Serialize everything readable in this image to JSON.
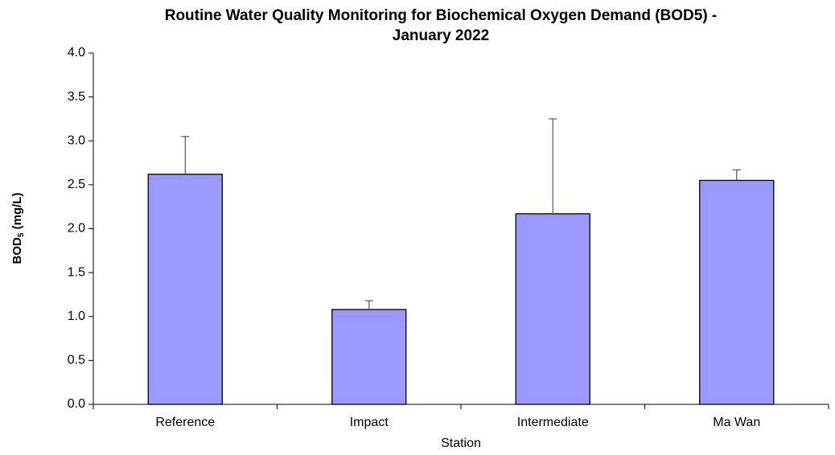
{
  "chart_data": {
    "type": "bar",
    "title": [
      "Routine Water Quality Monitoring for Biochemical Oxygen Demand (BOD5) -",
      "January 2022"
    ],
    "x_label": "Station",
    "y_label": [
      "BOD",
      "5",
      " (mg/L)"
    ],
    "categories": [
      "Reference",
      "Impact",
      "Intermediate",
      "Ma Wan"
    ],
    "values": [
      2.62,
      1.08,
      2.17,
      2.55
    ],
    "errors": [
      0.43,
      0.1,
      1.08,
      0.12
    ],
    "color": "#9999ff",
    "ylim": [
      0,
      4
    ],
    "yticks": [
      {
        "value": 0,
        "label": "0.0"
      },
      {
        "value": 0.5,
        "label": "0.5"
      },
      {
        "value": 1,
        "label": "1.0"
      },
      {
        "value": 1.5,
        "label": "1.5"
      },
      {
        "value": 2,
        "label": "2.0"
      },
      {
        "value": 2.5,
        "label": "2.5"
      },
      {
        "value": 3,
        "label": "3.0"
      },
      {
        "value": 3.5,
        "label": "3.5"
      },
      {
        "value": 4,
        "label": "4.0"
      }
    ],
    "grid": false
  }
}
